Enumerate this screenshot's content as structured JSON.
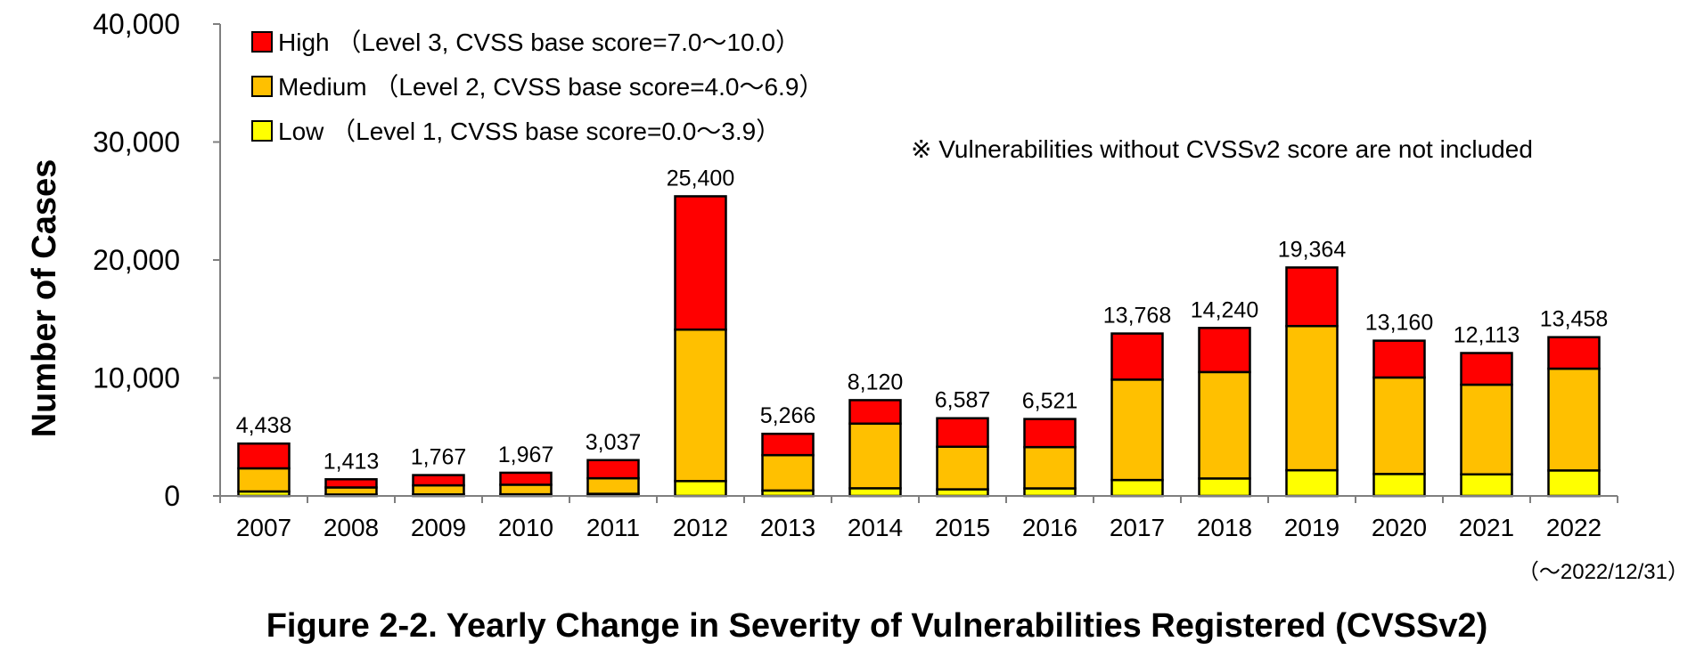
{
  "chart_data": {
    "type": "bar",
    "stacked": true,
    "title": "Figure 2-2. Yearly Change in Severity of Vulnerabilities Registered (CVSSv2)",
    "ylabel": "Number of Cases",
    "xlabel": "",
    "ylim": [
      0,
      40000
    ],
    "yticks": [
      0,
      10000,
      20000,
      30000,
      40000
    ],
    "ytick_labels": [
      "0",
      "10,000",
      "20,000",
      "30,000",
      "40,000"
    ],
    "grid": false,
    "legend_placement": "top-left",
    "categories": [
      "2007",
      "2008",
      "2009",
      "2010",
      "2011",
      "2012",
      "2013",
      "2014",
      "2015",
      "2016",
      "2017",
      "2018",
      "2019",
      "2020",
      "2021",
      "2022"
    ],
    "series": [
      {
        "name": "Low",
        "legend_label": "Low （Level 1, CVSS base score=0.0～3.9）",
        "color": "#ffff00",
        "values": [
          380,
          120,
          130,
          140,
          180,
          1260,
          460,
          650,
          560,
          640,
          1350,
          1480,
          2180,
          1860,
          1830,
          2160
        ]
      },
      {
        "name": "Medium",
        "legend_label": "Medium （Level 2, CVSS base score=4.0～6.9）",
        "color": "#ffc000",
        "values": [
          1960,
          600,
          770,
          810,
          1320,
          12840,
          3000,
          5480,
          3610,
          3500,
          8510,
          9020,
          12220,
          8180,
          7600,
          8630
        ]
      },
      {
        "name": "High",
        "legend_label": "High （Level 3, CVSS base score=7.0～10.0）",
        "color": "#ff0000",
        "values": [
          2098,
          693,
          867,
          1017,
          1537,
          11300,
          1806,
          1990,
          2417,
          2381,
          3908,
          3740,
          4964,
          3120,
          2683,
          2668
        ]
      }
    ],
    "totals": [
      4438,
      1413,
      1767,
      1967,
      3037,
      25400,
      5266,
      8120,
      6587,
      6521,
      13768,
      14240,
      19364,
      13160,
      12113,
      13458
    ],
    "total_labels": [
      "4,438",
      "1,413",
      "1,767",
      "1,967",
      "3,037",
      "25,400",
      "5,266",
      "8,120",
      "6,587",
      "6,521",
      "13,768",
      "14,240",
      "19,364",
      "13,160",
      "12,113",
      "13,458"
    ],
    "annotations": [
      "※ Vulnerabilities without CVSSv2 score are not included",
      "（～2022/12/31）"
    ]
  }
}
